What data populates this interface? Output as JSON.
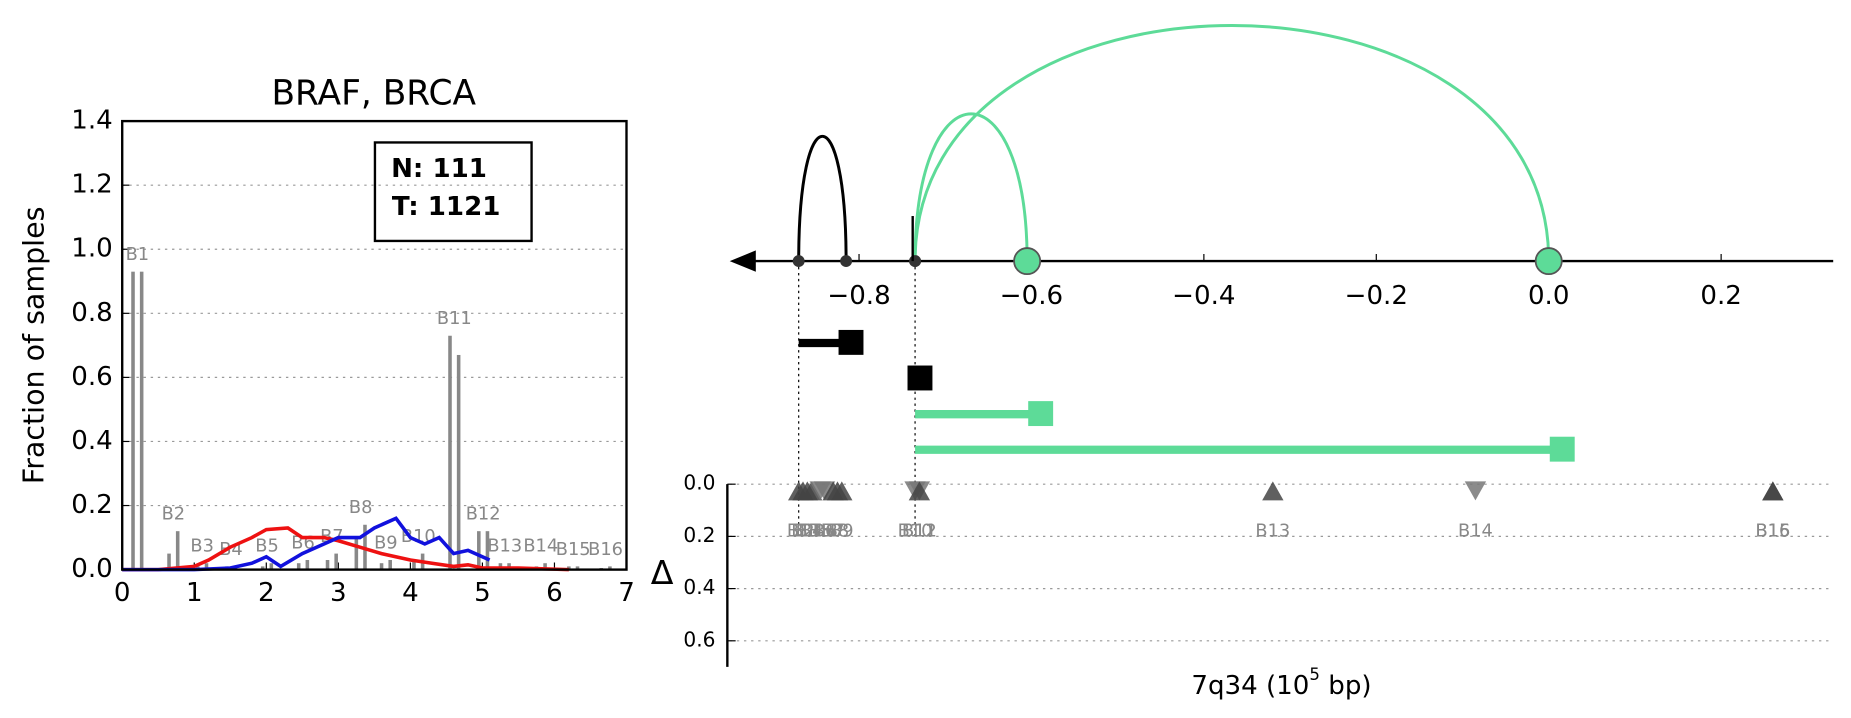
{
  "chart_data": [
    {
      "type": "bar",
      "title": "BRAF, BRCA",
      "ylabel": "Fraction of samples",
      "xlim": [
        0,
        7
      ],
      "xticks": [
        0,
        1,
        2,
        3,
        4,
        5,
        6,
        7
      ],
      "ylim": [
        0,
        1.4
      ],
      "yticks": [
        {
          "value": 0,
          "label": "0.0"
        },
        {
          "value": 0.2,
          "label": "0.2"
        },
        {
          "value": 0.4,
          "label": "0.4"
        },
        {
          "value": 0.6,
          "label": "0.6"
        },
        {
          "value": 0.8,
          "label": "0.8"
        },
        {
          "value": 1.0,
          "label": "1.0"
        },
        {
          "value": 1.2,
          "label": "1.2"
        },
        {
          "value": 1.4,
          "label": "1.4"
        }
      ],
      "grid": true,
      "annotation": [
        "N: 111",
        "T: 1121"
      ],
      "categories": [
        "B1",
        "B2",
        "B3",
        "B4",
        "B5",
        "B6",
        "B7",
        "B8",
        "B9",
        "B10",
        "B11",
        "B12",
        "B13",
        "B14",
        "B15",
        "B16"
      ],
      "x": [
        0.15,
        0.65,
        1.05,
        1.45,
        1.95,
        2.45,
        2.85,
        3.25,
        3.6,
        4.05,
        4.55,
        4.95,
        5.25,
        5.75,
        6.2,
        6.65
      ],
      "series": [
        {
          "color": "#888888",
          "values": [
            0.93,
            0.05,
            0.01,
            0.01,
            0.01,
            0.02,
            0.03,
            0.1,
            0.02,
            0.03,
            0.73,
            0.12,
            0.02,
            0.01,
            0.01,
            0.005
          ]
        },
        {
          "color": "#888888",
          "values": [
            0.93,
            0.12,
            0.02,
            0.01,
            0.02,
            0.03,
            0.05,
            0.14,
            0.03,
            0.05,
            0.67,
            0.12,
            0.02,
            0.02,
            0.01,
            0.01
          ]
        }
      ],
      "lines": [
        {
          "color": "#ee1111",
          "x": [
            0,
            0.5,
            1,
            1.2,
            1.5,
            1.8,
            2,
            2.3,
            2.5,
            2.8,
            3,
            3.3,
            3.6,
            4,
            4.3,
            4.6,
            4.8,
            5,
            5.5,
            6.2
          ],
          "values": [
            0,
            0,
            0.01,
            0.03,
            0.07,
            0.1,
            0.125,
            0.13,
            0.1,
            0.1,
            0.09,
            0.07,
            0.05,
            0.03,
            0.02,
            0.01,
            0.015,
            0.005,
            0.005,
            0
          ]
        },
        {
          "color": "#1111dd",
          "x": [
            0,
            1,
            1.5,
            1.8,
            2,
            2.2,
            2.5,
            2.8,
            3,
            3.3,
            3.5,
            3.8,
            4,
            4.2,
            4.4,
            4.6,
            4.8,
            5.1
          ],
          "values": [
            0,
            0,
            0.005,
            0.02,
            0.04,
            0.01,
            0.05,
            0.08,
            0.1,
            0.1,
            0.13,
            0.16,
            0.1,
            0.08,
            0.1,
            0.05,
            0.06,
            0.03
          ]
        }
      ]
    },
    {
      "type": "arc-diagram",
      "xlabel": [
        "7q34 (10",
        "5",
        " bp)"
      ],
      "xlim": [
        -0.95,
        0.33
      ],
      "xticks": [
        {
          "value": -0.8,
          "label": "−0.8"
        },
        {
          "value": -0.6,
          "label": "−0.6"
        },
        {
          "value": -0.4,
          "label": "−0.4"
        },
        {
          "value": -0.2,
          "label": "−0.2"
        },
        {
          "value": 0,
          "label": "0.0"
        },
        {
          "value": 0.2,
          "label": "0.2"
        }
      ],
      "arcs": [
        {
          "start": -0.87,
          "end": -0.815,
          "color": "#000000"
        },
        {
          "start": -0.735,
          "end": -0.605,
          "color": "#5ddb98"
        },
        {
          "start": -0.735,
          "end": 0,
          "color": "#5ddb98"
        }
      ],
      "segments": [
        {
          "start": -0.87,
          "end": -0.81,
          "color": "#000000"
        },
        {
          "start": -0.73,
          "end": -0.73,
          "color": "#000000"
        },
        {
          "start": -0.735,
          "end": -0.59,
          "color": "#5ddb98"
        },
        {
          "start": -0.735,
          "end": 0.015,
          "color": "#5ddb98"
        }
      ],
      "ylabel": "Δ",
      "ylim": [
        0,
        0.7
      ],
      "yticks": [
        {
          "value": 0,
          "label": "0.0"
        },
        {
          "value": 0.2,
          "label": "0.2"
        },
        {
          "value": 0.4,
          "label": "0.4"
        },
        {
          "value": 0.6,
          "label": "0.6"
        }
      ],
      "grid": true,
      "markers": {
        "categories": [
          "B1",
          "B2",
          "B3",
          "B4",
          "B5",
          "B6",
          "B7",
          "B8",
          "B9",
          "B10",
          "B11",
          "B12",
          "B13",
          "B14",
          "B15",
          "B16"
        ],
        "x": [
          -0.87,
          -0.865,
          -0.86,
          -0.855,
          -0.845,
          -0.84,
          -0.83,
          -0.825,
          -0.82,
          -0.735,
          -0.73,
          -0.73,
          -0.32,
          -0.085,
          0.26,
          0.26
        ],
        "values": [
          0.03,
          0.03,
          0.03,
          0.03,
          0.03,
          0.03,
          0.03,
          0.03,
          0.03,
          0.03,
          0.03,
          0.03,
          0.03,
          0.03,
          0.03,
          0.03
        ],
        "direction": [
          "up",
          "up",
          "up",
          "up",
          "down",
          "down",
          "up",
          "up",
          "up",
          "down",
          "down",
          "up",
          "up",
          "down",
          "up",
          "up"
        ]
      }
    }
  ]
}
